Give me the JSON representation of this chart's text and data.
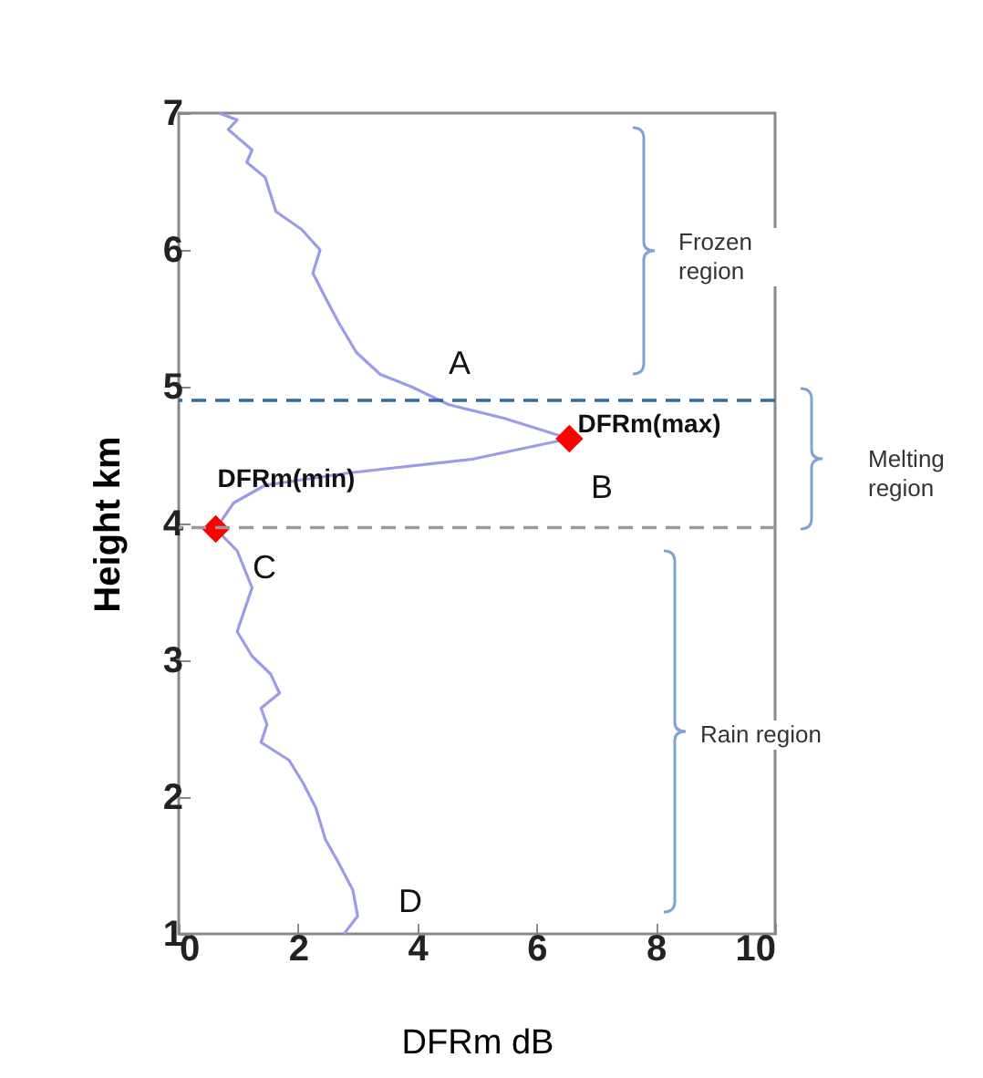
{
  "chart_data": {
    "type": "line",
    "xlabel": "DFRm dB",
    "ylabel": "Height km",
    "xlim": [
      0,
      10
    ],
    "ylim": [
      1,
      7
    ],
    "xticks": [
      0,
      2,
      4,
      6,
      8,
      10
    ],
    "yticks": [
      1,
      2,
      3,
      4,
      5,
      6,
      7
    ],
    "grid": false,
    "series": [
      {
        "color": "#9b9bea",
        "x": [
          0.68,
          0.98,
          0.83,
          1.23,
          1.14,
          1.45,
          1.63,
          2.06,
          2.37,
          2.25,
          2.46,
          2.68,
          2.98,
          3.38,
          3.9,
          4.52,
          5.45,
          6.55,
          4.92,
          2.86,
          1.45,
          0.92,
          0.62,
          0.98,
          1.23,
          0.98,
          1.23,
          1.54,
          1.69,
          1.38,
          1.48,
          1.38,
          1.85,
          2.09,
          2.3,
          2.46,
          2.68,
          2.92,
          3.0,
          2.77
        ],
        "values": [
          7.0,
          6.95,
          6.88,
          6.73,
          6.64,
          6.53,
          6.28,
          6.15,
          6.0,
          5.83,
          5.65,
          5.47,
          5.25,
          5.09,
          5.0,
          4.87,
          4.77,
          4.62,
          4.47,
          4.37,
          4.28,
          4.15,
          3.96,
          3.8,
          3.53,
          3.21,
          3.03,
          2.9,
          2.76,
          2.65,
          2.53,
          2.4,
          2.27,
          2.1,
          1.92,
          1.69,
          1.52,
          1.32,
          1.13,
          1.0
        ]
      },
      {
        "type": "scatter",
        "color": "#ff0000",
        "marker": "diamond",
        "x": [
          6.55,
          0.62
        ],
        "values": [
          4.62,
          3.96
        ]
      }
    ],
    "ref_lines": [
      {
        "axis": "y",
        "value": 4.9,
        "color": "#2e6aa0",
        "line_style": "dashed"
      },
      {
        "axis": "y",
        "value": 3.97,
        "color": "#999999",
        "line_style": "dashed"
      }
    ],
    "annotations": [
      "A",
      "B",
      "C",
      "D",
      "DFRm(max)",
      "DFRm(min)",
      "Frozen region",
      "Melting region",
      "Rain region"
    ]
  }
}
